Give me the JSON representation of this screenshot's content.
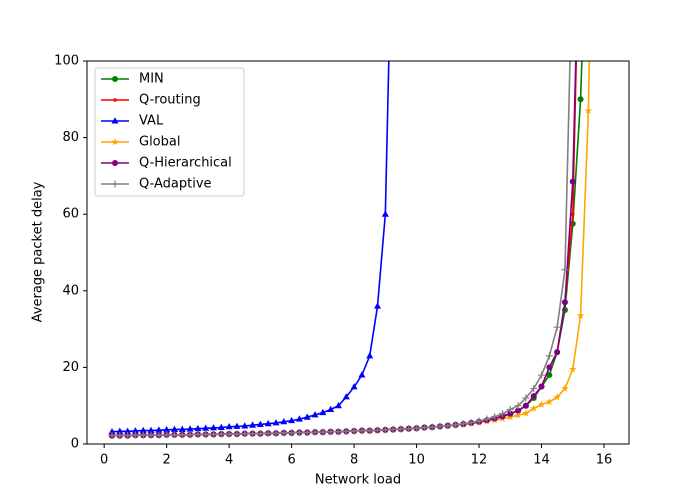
{
  "chart_data": {
    "type": "line",
    "xlabel": "Network load",
    "ylabel": "Average packet delay",
    "x": [
      0.25,
      0.5,
      0.75,
      1,
      1.25,
      1.5,
      1.75,
      2,
      2.25,
      2.5,
      2.75,
      3,
      3.25,
      3.5,
      3.75,
      4,
      4.25,
      4.5,
      4.75,
      5,
      5.25,
      5.5,
      5.75,
      6,
      6.25,
      6.5,
      6.75,
      7,
      7.25,
      7.5,
      7.75,
      8,
      8.25,
      8.5,
      8.75,
      9,
      9.25,
      9.5,
      9.75,
      10,
      10.25,
      10.5,
      10.75,
      11,
      11.25,
      11.5,
      11.75,
      12,
      12.25,
      12.5,
      12.75,
      13,
      13.25,
      13.5,
      13.75,
      14,
      14.25,
      14.5,
      14.75,
      15,
      15.25,
      15.5,
      15.75
    ],
    "xlim": [
      -0.55,
      16.8
    ],
    "xticks": [
      0,
      2,
      4,
      6,
      8,
      10,
      12,
      14,
      16
    ],
    "ylim": [
      0,
      100
    ],
    "yticks": [
      0,
      20,
      40,
      60,
      80,
      100
    ],
    "legend": "upper left",
    "series": [
      {
        "name": "MIN",
        "color": "green",
        "marker": "circle",
        "values": [
          2.2,
          2.2,
          2.2,
          2.3,
          2.3,
          2.3,
          2.3,
          2.4,
          2.4,
          2.4,
          2.4,
          2.5,
          2.5,
          2.5,
          2.6,
          2.6,
          2.6,
          2.7,
          2.7,
          2.7,
          2.8,
          2.8,
          2.9,
          2.9,
          3.0,
          3.0,
          3.1,
          3.1,
          3.2,
          3.2,
          3.3,
          3.4,
          3.5,
          3.5,
          3.6,
          3.7,
          3.8,
          3.9,
          4.0,
          4.1,
          4.3,
          4.4,
          4.6,
          4.8,
          5.0,
          5.2,
          5.5,
          5.8,
          6.2,
          6.7,
          7.2,
          7.9,
          8.7,
          10,
          12,
          15,
          18,
          24,
          35,
          57.5,
          90,
          150,
          null
        ]
      },
      {
        "name": "Q-routing",
        "color": "red",
        "marker": "dot",
        "values": [
          2.2,
          2.2,
          2.2,
          2.3,
          2.3,
          2.3,
          2.3,
          2.4,
          2.4,
          2.4,
          2.4,
          2.5,
          2.5,
          2.5,
          2.6,
          2.6,
          2.6,
          2.7,
          2.7,
          2.7,
          2.8,
          2.8,
          2.9,
          2.9,
          3.0,
          3.0,
          3.1,
          3.1,
          3.2,
          3.2,
          3.3,
          3.4,
          3.5,
          3.5,
          3.6,
          3.7,
          3.8,
          3.9,
          4.0,
          4.1,
          4.3,
          4.4,
          4.6,
          4.8,
          5.0,
          5.2,
          5.5,
          5.8,
          6.2,
          6.7,
          7.2,
          7.9,
          8.7,
          10,
          12.5,
          15,
          20,
          24,
          37,
          60,
          150,
          null,
          null
        ]
      },
      {
        "name": "VAL",
        "color": "blue",
        "marker": "triangle",
        "values": [
          3.2,
          3.3,
          3.3,
          3.4,
          3.5,
          3.5,
          3.6,
          3.7,
          3.8,
          3.8,
          3.9,
          4.0,
          4.1,
          4.2,
          4.3,
          4.5,
          4.6,
          4.7,
          4.9,
          5.1,
          5.3,
          5.5,
          5.8,
          6.1,
          6.5,
          7.0,
          7.6,
          8.2,
          9.0,
          10.0,
          12.3,
          14.9,
          18,
          23,
          36,
          60,
          150,
          null,
          null,
          null,
          null,
          null,
          null,
          null,
          null,
          null,
          null,
          null,
          null,
          null,
          null,
          null,
          null,
          null,
          null,
          null,
          null,
          null,
          null,
          null,
          null,
          null,
          null
        ]
      },
      {
        "name": "Global",
        "color": "orange",
        "marker": "star",
        "values": [
          2.2,
          2.2,
          2.2,
          2.3,
          2.3,
          2.3,
          2.3,
          2.4,
          2.4,
          2.4,
          2.4,
          2.5,
          2.5,
          2.5,
          2.6,
          2.6,
          2.6,
          2.7,
          2.7,
          2.7,
          2.8,
          2.8,
          2.9,
          2.9,
          3.0,
          3.0,
          3.1,
          3.1,
          3.2,
          3.2,
          3.3,
          3.4,
          3.5,
          3.5,
          3.6,
          3.7,
          3.8,
          3.9,
          4.0,
          4.1,
          4.3,
          4.4,
          4.6,
          4.7,
          4.9,
          5.1,
          5.3,
          5.6,
          5.9,
          6.2,
          6.6,
          7.0,
          7.5,
          8.0,
          9.3,
          10.3,
          11,
          12.2,
          14.5,
          19.5,
          33.5,
          87,
          200
        ]
      },
      {
        "name": "Q-Hierarchical",
        "color": "purple",
        "marker": "circle",
        "values": [
          2.2,
          2.2,
          2.2,
          2.3,
          2.3,
          2.3,
          2.3,
          2.4,
          2.4,
          2.4,
          2.4,
          2.5,
          2.5,
          2.5,
          2.6,
          2.6,
          2.6,
          2.7,
          2.7,
          2.7,
          2.8,
          2.8,
          2.9,
          2.9,
          3.0,
          3.0,
          3.1,
          3.1,
          3.2,
          3.2,
          3.3,
          3.4,
          3.5,
          3.5,
          3.6,
          3.7,
          3.8,
          3.9,
          4.0,
          4.1,
          4.3,
          4.4,
          4.6,
          4.8,
          5.0,
          5.2,
          5.5,
          5.8,
          6.2,
          6.7,
          7.2,
          7.9,
          8.7,
          10,
          12.5,
          15,
          20,
          24,
          37,
          68.5,
          150,
          null,
          null
        ]
      },
      {
        "name": "Q-Adaptive",
        "color": "gray",
        "marker": "plus",
        "values": [
          2.2,
          2.2,
          2.2,
          2.3,
          2.3,
          2.3,
          2.3,
          2.4,
          2.4,
          2.4,
          2.4,
          2.5,
          2.5,
          2.5,
          2.6,
          2.6,
          2.6,
          2.7,
          2.7,
          2.7,
          2.8,
          2.8,
          2.9,
          2.9,
          3.0,
          3.0,
          3.1,
          3.1,
          3.2,
          3.2,
          3.3,
          3.4,
          3.5,
          3.5,
          3.6,
          3.7,
          3.8,
          3.9,
          4.0,
          4.1,
          4.3,
          4.4,
          4.6,
          4.8,
          5.0,
          5.3,
          5.6,
          6.0,
          6.5,
          7.1,
          7.9,
          9.0,
          10,
          12,
          14.5,
          18,
          23,
          30.5,
          45.5,
          130,
          null,
          null,
          null
        ]
      }
    ]
  }
}
